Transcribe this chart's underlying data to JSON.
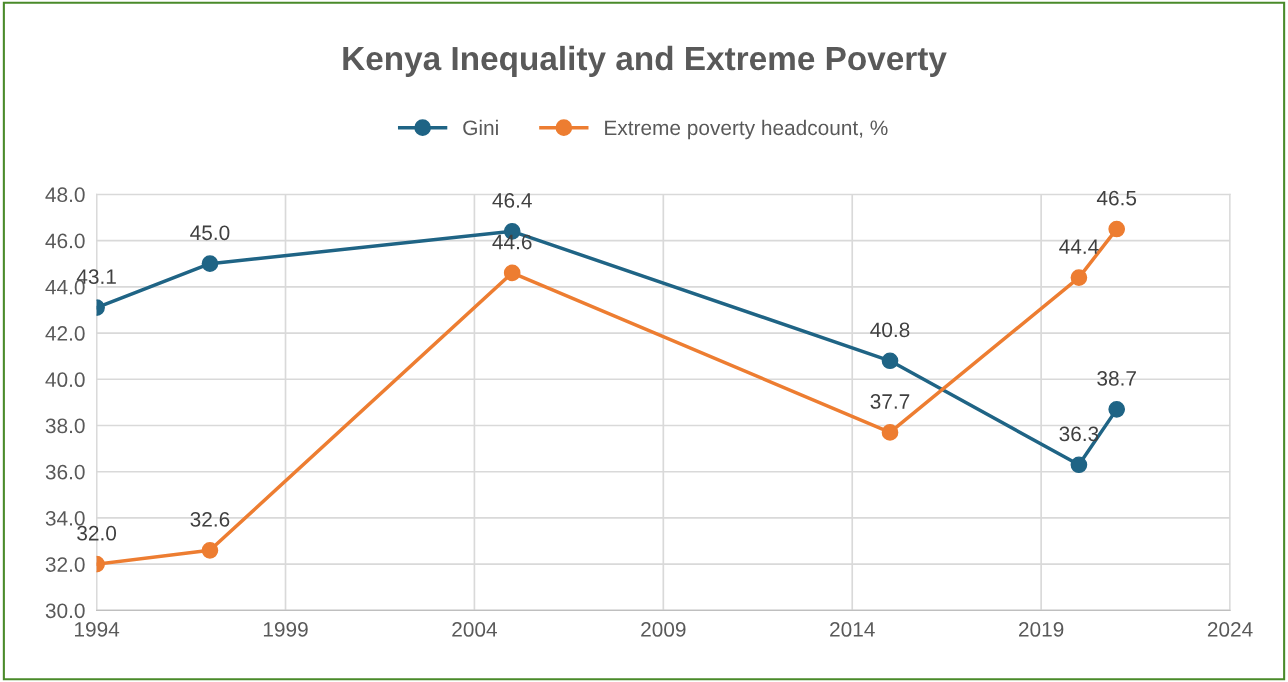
{
  "chart_data": {
    "type": "line",
    "title": "Kenya Inequality and Extreme Poverty",
    "x": [
      1994,
      1997,
      2005,
      2015,
      2020,
      2021
    ],
    "series": [
      {
        "name": "Gini",
        "color": "#1f6485",
        "values": [
          43.1,
          45.0,
          46.4,
          40.8,
          36.3,
          38.7
        ],
        "value_labels": [
          "43.1",
          "45.0",
          "46.4",
          "40.8",
          "36.3",
          "38.7"
        ]
      },
      {
        "name": "Extreme poverty headcount, %",
        "color": "#ed7d31",
        "values": [
          32.0,
          32.6,
          44.6,
          37.7,
          44.4,
          46.5
        ],
        "value_labels": [
          "32.0",
          "32.6",
          "44.6",
          "37.7",
          "44.4",
          "46.5"
        ]
      }
    ],
    "xlim": [
      1994,
      2024
    ],
    "xticks": [
      1994,
      1999,
      2004,
      2009,
      2014,
      2019,
      2024
    ],
    "ylim": [
      30,
      48
    ],
    "yticks": [
      {
        "value": 30,
        "label": "30.0"
      },
      {
        "value": 32,
        "label": "32.0"
      },
      {
        "value": 34,
        "label": "34.0"
      },
      {
        "value": 36,
        "label": "36.0"
      },
      {
        "value": 38,
        "label": "38.0"
      },
      {
        "value": 40,
        "label": "40.0"
      },
      {
        "value": 42,
        "label": "42.0"
      },
      {
        "value": 44,
        "label": "44.0"
      },
      {
        "value": 46,
        "label": "46.0"
      },
      {
        "value": 48,
        "label": "48.0"
      }
    ],
    "grid": true,
    "legend": "top",
    "marker": "circle",
    "line_style": "solid"
  }
}
